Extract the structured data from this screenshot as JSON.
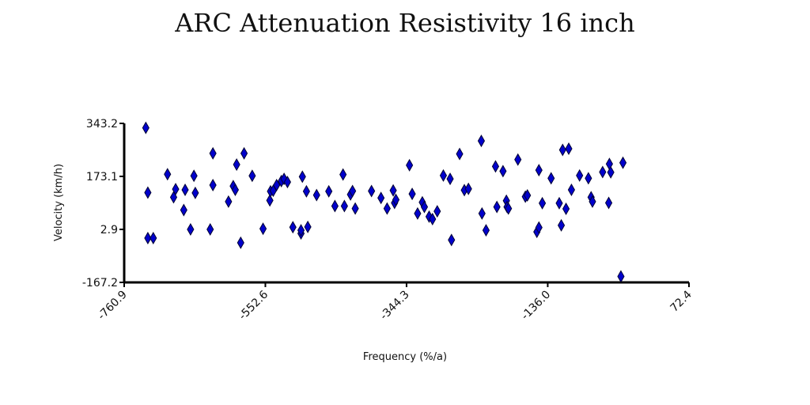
{
  "chart_data": {
    "type": "scatter",
    "title": "ARC Attenuation Resistivity 16 inch",
    "xlabel": "Frequency (%/a)",
    "ylabel": "Velocity (km/h)",
    "xlim": [
      -760.9,
      72.4
    ],
    "ylim": [
      -167.2,
      343.2
    ],
    "xticks": [
      "-760.9",
      "-552.6",
      "-344.3",
      "-136.0",
      "72.4"
    ],
    "yticks": [
      "343.2",
      "173.1",
      "2.9",
      "-167.2"
    ],
    "marker": "diamond",
    "marker_color": "#0000cc",
    "points": [
      {
        "x": -729,
        "y": 329
      },
      {
        "x": -726,
        "y": 121
      },
      {
        "x": -726,
        "y": -25
      },
      {
        "x": -718,
        "y": -25
      },
      {
        "x": -697,
        "y": 180
      },
      {
        "x": -688,
        "y": 106
      },
      {
        "x": -685,
        "y": 132
      },
      {
        "x": -673,
        "y": 65
      },
      {
        "x": -671,
        "y": 130
      },
      {
        "x": -663,
        "y": 3
      },
      {
        "x": -658,
        "y": 175
      },
      {
        "x": -656,
        "y": 120
      },
      {
        "x": -634,
        "y": 3
      },
      {
        "x": -630,
        "y": 247
      },
      {
        "x": -630,
        "y": 145
      },
      {
        "x": -607,
        "y": 92
      },
      {
        "x": -600,
        "y": 142
      },
      {
        "x": -597,
        "y": 130
      },
      {
        "x": -595,
        "y": 211
      },
      {
        "x": -589,
        "y": -40
      },
      {
        "x": -584,
        "y": 247
      },
      {
        "x": -572,
        "y": 175
      },
      {
        "x": -556,
        "y": 5
      },
      {
        "x": -546,
        "y": 96
      },
      {
        "x": -545,
        "y": 125
      },
      {
        "x": -541,
        "y": 127
      },
      {
        "x": -536,
        "y": 145
      },
      {
        "x": -529,
        "y": 158
      },
      {
        "x": -525,
        "y": 165
      },
      {
        "x": -520,
        "y": 155
      },
      {
        "x": -512,
        "y": 10
      },
      {
        "x": -500,
        "y": -10
      },
      {
        "x": -500,
        "y": 0
      },
      {
        "x": -498,
        "y": 172
      },
      {
        "x": -492,
        "y": 125
      },
      {
        "x": -490,
        "y": 11
      },
      {
        "x": -477,
        "y": 113
      },
      {
        "x": -459,
        "y": 125
      },
      {
        "x": -450,
        "y": 78
      },
      {
        "x": -438,
        "y": 179
      },
      {
        "x": -436,
        "y": 78
      },
      {
        "x": -427,
        "y": 115
      },
      {
        "x": -424,
        "y": 126
      },
      {
        "x": -420,
        "y": 70
      },
      {
        "x": -396,
        "y": 126
      },
      {
        "x": -382,
        "y": 104
      },
      {
        "x": -373,
        "y": 70
      },
      {
        "x": -364,
        "y": 128
      },
      {
        "x": -362,
        "y": 88
      },
      {
        "x": -360,
        "y": 98
      },
      {
        "x": -340,
        "y": 209
      },
      {
        "x": -336,
        "y": 117
      },
      {
        "x": -328,
        "y": 54
      },
      {
        "x": -321,
        "y": 90
      },
      {
        "x": -318,
        "y": 75
      },
      {
        "x": -311,
        "y": 44
      },
      {
        "x": -306,
        "y": 36
      },
      {
        "x": -299,
        "y": 61
      },
      {
        "x": -290,
        "y": 176
      },
      {
        "x": -280,
        "y": 165
      },
      {
        "x": -278,
        "y": -31
      },
      {
        "x": -266,
        "y": 245
      },
      {
        "x": -259,
        "y": 129
      },
      {
        "x": -253,
        "y": 133
      },
      {
        "x": -234,
        "y": 287
      },
      {
        "x": -233,
        "y": 54
      },
      {
        "x": -227,
        "y": 0
      },
      {
        "x": -213,
        "y": 205
      },
      {
        "x": -211,
        "y": 75
      },
      {
        "x": -202,
        "y": 190
      },
      {
        "x": -197,
        "y": 95
      },
      {
        "x": -196,
        "y": 75
      },
      {
        "x": -194,
        "y": 70
      },
      {
        "x": -180,
        "y": 227
      },
      {
        "x": -169,
        "y": 108
      },
      {
        "x": -166,
        "y": 112
      },
      {
        "x": -152,
        "y": -5
      },
      {
        "x": -149,
        "y": 193
      },
      {
        "x": -149,
        "y": 9
      },
      {
        "x": -144,
        "y": 87
      },
      {
        "x": -131,
        "y": 167
      },
      {
        "x": -119,
        "y": 87
      },
      {
        "x": -116,
        "y": 16
      },
      {
        "x": -114,
        "y": 258
      },
      {
        "x": -109,
        "y": 69
      },
      {
        "x": -105,
        "y": 262
      },
      {
        "x": -101,
        "y": 130
      },
      {
        "x": -89,
        "y": 176
      },
      {
        "x": -76,
        "y": 167
      },
      {
        "x": -72,
        "y": 106
      },
      {
        "x": -70,
        "y": 92
      },
      {
        "x": -55,
        "y": 187
      },
      {
        "x": -46,
        "y": 88
      },
      {
        "x": -45,
        "y": 213
      },
      {
        "x": -43,
        "y": 186
      },
      {
        "x": -28,
        "y": -148
      },
      {
        "x": -25,
        "y": 217
      }
    ]
  }
}
